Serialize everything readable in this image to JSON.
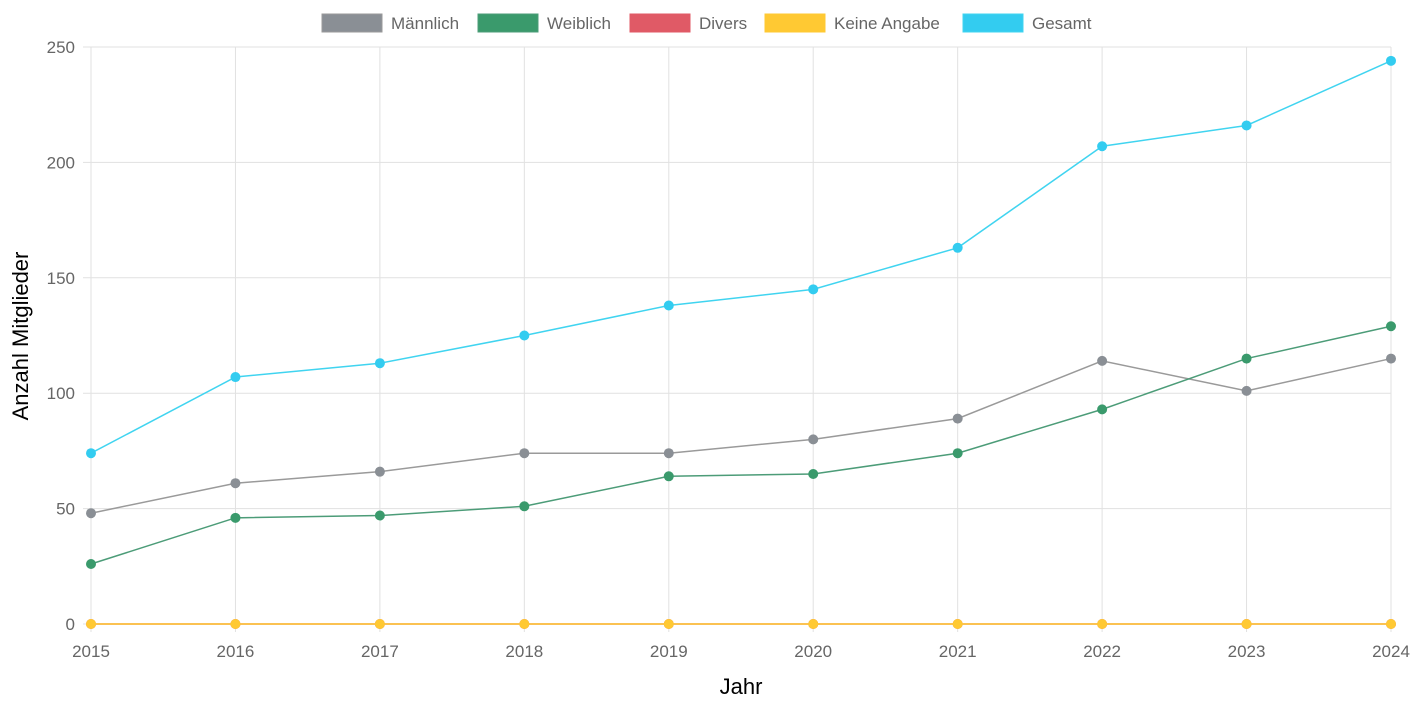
{
  "chart_data": {
    "type": "line",
    "title": "",
    "xlabel": "Jahr",
    "ylabel": "Anzahl Mitglieder",
    "x": [
      "2015",
      "2016",
      "2017",
      "2018",
      "2019",
      "2020",
      "2021",
      "2022",
      "2023",
      "2024"
    ],
    "ylim": [
      0,
      250
    ],
    "yticks": [
      0,
      50,
      100,
      150,
      200,
      250
    ],
    "grid": true,
    "legend_position": "top",
    "series": [
      {
        "name": "Männlich",
        "color": "#8a8f95",
        "line_color": "#9a9a9a",
        "values": [
          48,
          61,
          66,
          74,
          74,
          80,
          89,
          114,
          101,
          115
        ]
      },
      {
        "name": "Weiblich",
        "color": "#3a9a6c",
        "line_color": "#4c9c78",
        "values": [
          26,
          46,
          47,
          51,
          64,
          65,
          74,
          93,
          115,
          129
        ]
      },
      {
        "name": "Divers",
        "color": "#e05a66",
        "line_color": "#e05a66",
        "values": [
          0,
          0,
          0,
          0,
          0,
          0,
          0,
          0,
          0,
          0
        ]
      },
      {
        "name": "Keine Angabe",
        "color": "#ffc933",
        "line_color": "#ffc933",
        "values": [
          0,
          0,
          0,
          0,
          0,
          0,
          0,
          0,
          0,
          0
        ]
      },
      {
        "name": "Gesamt",
        "color": "#33ccf0",
        "line_color": "#40d4f0",
        "values": [
          74,
          107,
          113,
          125,
          138,
          145,
          163,
          207,
          216,
          244
        ]
      }
    ]
  }
}
